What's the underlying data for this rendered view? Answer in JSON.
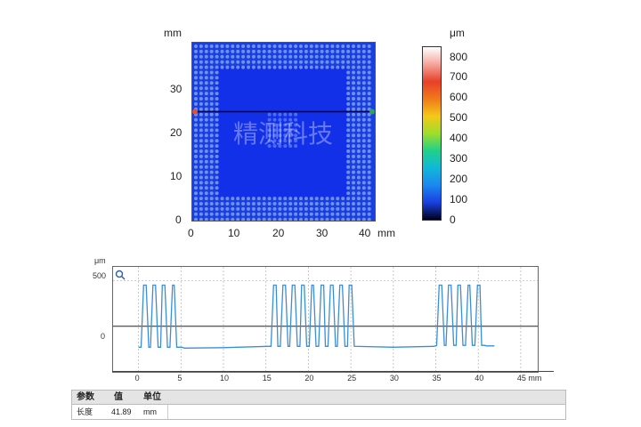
{
  "top_plot": {
    "y_unit": "mm",
    "x_unit": "mm",
    "y_ticks": [
      "30",
      "20",
      "10",
      "0"
    ],
    "x_ticks": [
      "0",
      "10",
      "20",
      "30",
      "40"
    ],
    "watermark_cn": "精测科技"
  },
  "colorbar": {
    "unit": "μm",
    "ticks": [
      "800",
      "700",
      "600",
      "500",
      "400",
      "300",
      "200",
      "100",
      "0"
    ]
  },
  "profile": {
    "y_unit": "μm",
    "y_ticks": [
      "500",
      "0"
    ],
    "x_ticks": [
      "0",
      "5",
      "10",
      "15",
      "20",
      "25",
      "30",
      "35",
      "40",
      "45 mm"
    ]
  },
  "table": {
    "headers": [
      "参数",
      "值",
      "单位"
    ],
    "row": {
      "name": "长度",
      "value": "41.89",
      "unit": "mm"
    }
  },
  "chart_data": [
    {
      "type": "heatmap",
      "description_units": "height in μm over x/y in mm",
      "xlim": [
        0,
        42
      ],
      "ylim": [
        0,
        40
      ],
      "colorbar_range": [
        0,
        850
      ],
      "profile_line_y": 24.5
    },
    {
      "type": "line",
      "xlabel": "",
      "ylabel": "",
      "ylim": [
        -500,
        650
      ],
      "xlim": [
        -3,
        47
      ],
      "series": [
        {
          "values_note": "surface profile along line",
          "x": [
            0.0,
            0.3,
            0.6,
            0.9,
            1.2,
            1.4,
            1.7,
            2.0,
            2.3,
            2.6,
            2.8,
            3.1,
            3.4,
            3.7,
            4.0,
            4.2,
            4.5,
            4.8,
            5.1,
            5.4,
            10,
            15.3,
            15.6,
            15.9,
            16.2,
            16.4,
            16.7,
            17.0,
            17.3,
            17.6,
            17.8,
            18.1,
            18.4,
            18.7,
            19.0,
            19.2,
            19.5,
            19.8,
            20.1,
            20.4,
            20.6,
            20.9,
            21.2,
            21.5,
            21.8,
            22.0,
            22.3,
            22.6,
            22.9,
            23.2,
            23.4,
            23.7,
            24.0,
            24.3,
            24.6,
            24.8,
            25.1,
            25.4,
            30,
            34.8,
            35.1,
            35.4,
            35.7,
            36.0,
            36.2,
            36.5,
            36.8,
            37.1,
            37.4,
            37.6,
            37.9,
            38.2,
            38.5,
            38.8,
            39.0,
            39.3,
            39.6,
            39.9,
            40.2,
            40.4,
            40.7,
            41.0,
            41.3,
            41.6,
            41.9
          ],
          "y": [
            -230,
            -230,
            450,
            450,
            -230,
            -230,
            450,
            450,
            -230,
            -230,
            450,
            450,
            -230,
            -230,
            450,
            450,
            -230,
            -230,
            -230,
            -240,
            -235,
            -220,
            -220,
            450,
            450,
            -220,
            -220,
            450,
            450,
            -220,
            -220,
            450,
            450,
            -220,
            -220,
            450,
            450,
            -220,
            -220,
            450,
            450,
            -220,
            -220,
            450,
            450,
            -220,
            -220,
            450,
            450,
            -220,
            -220,
            450,
            450,
            -220,
            -220,
            450,
            450,
            -220,
            -230,
            -220,
            -210,
            450,
            450,
            -210,
            -210,
            450,
            450,
            -210,
            -210,
            450,
            450,
            -210,
            -210,
            450,
            450,
            -210,
            -210,
            450,
            450,
            -210,
            -210,
            -215,
            -215,
            -215,
            -215
          ]
        }
      ]
    }
  ]
}
